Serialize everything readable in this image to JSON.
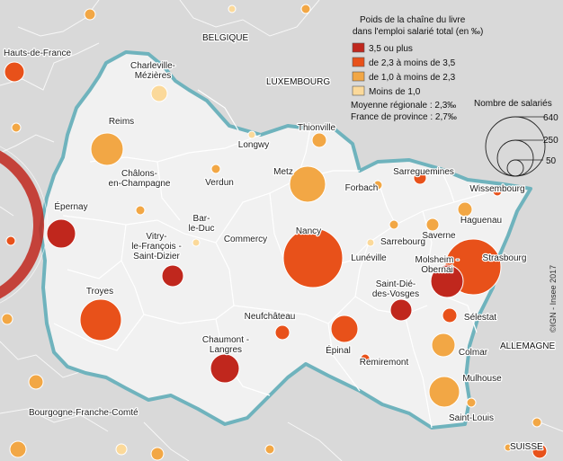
{
  "legend": {
    "title_line1": "Poids de la chaîne du livre",
    "title_line2": "dans l'emploi salarié total (en ‰)",
    "classes": [
      {
        "label": "3,5 ou plus",
        "color": "#c0271d"
      },
      {
        "label": "de 2,3  à moins de 3,5",
        "color": "#e8511a"
      },
      {
        "label": "de 1,0 à moins de 2,3",
        "color": "#f2a745"
      },
      {
        "label": "Moins de 1,0",
        "color": "#fbd99a"
      }
    ],
    "avg_regional": "Moyenne régionale : 2,3‰",
    "avg_province": "France de province : 2,7‰",
    "size_title": "Nombre de salariés",
    "size_values": [
      "640",
      "250",
      "50"
    ]
  },
  "countries": {
    "belgique": "BELGIQUE",
    "luxembourg": "LUXEMBOURG",
    "allemagne": "ALLEMAGNE",
    "suisse": "SUISSE"
  },
  "regions": {
    "hauts_de_france": "Hauts-de-France",
    "bourgogne": "Bourgogne-Franche-Comté"
  },
  "credit": "©IGN - Insee 2017",
  "places": [
    {
      "id": "charleville",
      "lines": [
        "Charleville-",
        "Mézières"
      ]
    },
    {
      "id": "reims",
      "lines": [
        "Reims"
      ]
    },
    {
      "id": "thionville",
      "lines": [
        "Thionville"
      ]
    },
    {
      "id": "longwy",
      "lines": [
        "Longwy"
      ]
    },
    {
      "id": "metz",
      "lines": [
        "Metz"
      ]
    },
    {
      "id": "verdun",
      "lines": [
        "Verdun"
      ]
    },
    {
      "id": "chalons",
      "lines": [
        "Châlons-",
        "en-Champagne"
      ]
    },
    {
      "id": "epernay",
      "lines": [
        "Épernay"
      ]
    },
    {
      "id": "sarreguemines",
      "lines": [
        "Sarreguemines"
      ]
    },
    {
      "id": "forbach",
      "lines": [
        "Forbach"
      ]
    },
    {
      "id": "wissembourg",
      "lines": [
        "Wissembourg"
      ]
    },
    {
      "id": "haguenau",
      "lines": [
        "Haguenau"
      ]
    },
    {
      "id": "barleduc",
      "lines": [
        "Bar-",
        "le-Duc"
      ]
    },
    {
      "id": "vitry",
      "lines": [
        "Vitry-",
        "le-François -",
        "Saint-Dizier"
      ]
    },
    {
      "id": "commercy",
      "lines": [
        "Commercy"
      ]
    },
    {
      "id": "nancy",
      "lines": [
        "Nancy"
      ]
    },
    {
      "id": "sarrebourg",
      "lines": [
        "Sarrebourg"
      ]
    },
    {
      "id": "saverne",
      "lines": [
        "Saverne"
      ]
    },
    {
      "id": "luneville",
      "lines": [
        "Lunéville"
      ]
    },
    {
      "id": "molsheim",
      "lines": [
        "Molsheim -",
        "Obernai"
      ]
    },
    {
      "id": "strasbourg",
      "lines": [
        "Strasbourg"
      ]
    },
    {
      "id": "troyes",
      "lines": [
        "Troyes"
      ]
    },
    {
      "id": "saintdie",
      "lines": [
        "Saint-Dié-",
        "des-Vosges"
      ]
    },
    {
      "id": "neufchateau",
      "lines": [
        "Neufchâteau"
      ]
    },
    {
      "id": "selestat",
      "lines": [
        "Sélestat"
      ]
    },
    {
      "id": "chaumont",
      "lines": [
        "Chaumont -",
        "Langres"
      ]
    },
    {
      "id": "epinal",
      "lines": [
        "Épinal"
      ]
    },
    {
      "id": "remiremont",
      "lines": [
        "Remiremont"
      ]
    },
    {
      "id": "colmar",
      "lines": [
        "Colmar"
      ]
    },
    {
      "id": "mulhouse",
      "lines": [
        "Mulhouse"
      ]
    },
    {
      "id": "saintlouis",
      "lines": [
        "Saint-Louis"
      ]
    }
  ]
}
